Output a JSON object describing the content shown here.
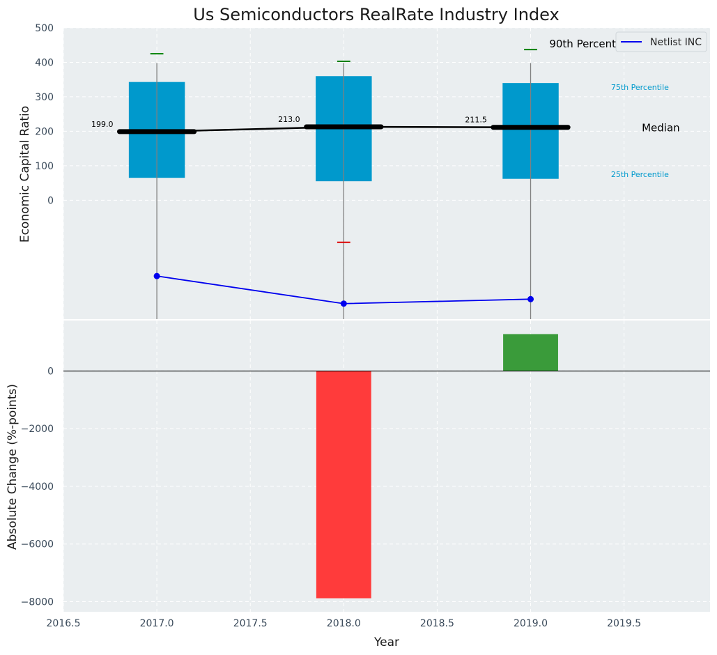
{
  "chart_data": [
    {
      "type": "box-percentile",
      "title": "Us Semiconductors RealRate Industry Index",
      "ylabel": "Economic Capital Ratio",
      "ylim": [
        -345,
        500
      ],
      "yticks": [
        0,
        100,
        200,
        300,
        400,
        500
      ],
      "categories": [
        2017,
        2018,
        2019
      ],
      "p25": [
        65,
        55,
        62
      ],
      "p75": [
        343,
        360,
        340
      ],
      "p90": [
        425,
        403,
        437
      ],
      "p10": [
        null,
        -122,
        null
      ],
      "median": [
        199.0,
        213.0,
        211.5
      ],
      "median_labels": [
        "199.0",
        "213.0",
        "211.5"
      ],
      "annotations": {
        "p90": "90th Percentile",
        "p75": "75th Percentile",
        "median": "Median",
        "p25": "25th Percentile"
      },
      "series": [
        {
          "name": "Netlist INC",
          "x": [
            2017,
            2018,
            2019
          ],
          "values": [
            -220,
            -300,
            -287
          ]
        }
      ],
      "legend": "top-right",
      "grid": true
    },
    {
      "type": "bar",
      "xlabel": "Year",
      "ylabel": "Absolute Change (%-points)",
      "xlim": [
        2016.5,
        2019.96
      ],
      "xticks": [
        2016.5,
        2017.0,
        2017.5,
        2018.0,
        2018.5,
        2019.0,
        2019.5
      ],
      "xtick_labels": [
        "2016.5",
        "2017.0",
        "2017.5",
        "2018.0",
        "2018.5",
        "2019.0",
        "2019.5"
      ],
      "ylim": [
        -8350,
        1750
      ],
      "yticks": [
        0,
        -2000,
        -4000,
        -6000,
        -8000
      ],
      "ytick_labels": [
        "0",
        "−2000",
        "−4000",
        "−6000",
        "−8000"
      ],
      "x": [
        2018,
        2019
      ],
      "values": [
        -7880,
        1280
      ],
      "colors": {
        "negative": "#ff3b3b",
        "positive": "#3a9b3a"
      },
      "grid": true
    }
  ],
  "colors": {
    "box": "#0099cc",
    "line": "#0000ee",
    "p90_cap": "#008000",
    "p10_cap": "#dd0000",
    "median": "#000000",
    "panel": "#eaeef0"
  }
}
